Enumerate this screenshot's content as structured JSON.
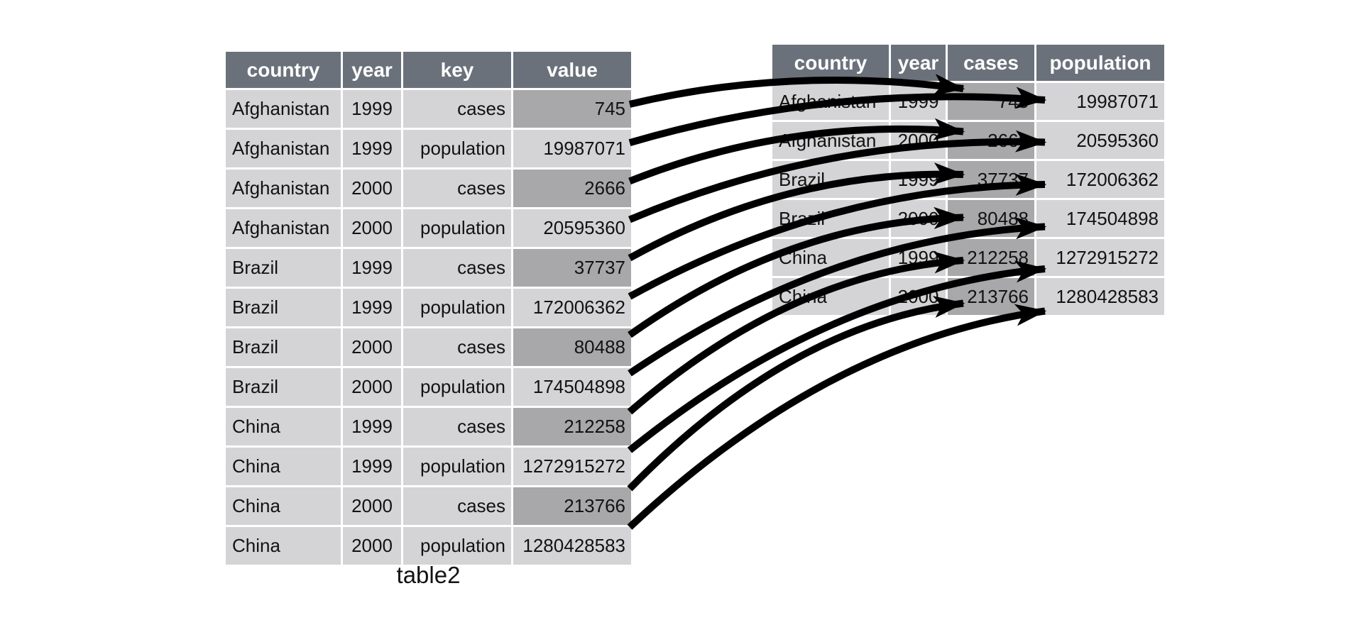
{
  "caption": "table2",
  "colors": {
    "header_bg": "#6b717b",
    "cell_bg": "#d4d4d6",
    "highlight_bg": "#a8a8aa",
    "text": "#121212",
    "header_text": "#ffffff",
    "arrow": "#000000",
    "page_bg": "#ffffff"
  },
  "left_table": {
    "title": "table2",
    "columns": [
      "country",
      "year",
      "key",
      "value"
    ],
    "rows": [
      {
        "country": "Afghanistan",
        "year": "1999",
        "key": "cases",
        "value": "745",
        "value_highlight": true
      },
      {
        "country": "Afghanistan",
        "year": "1999",
        "key": "population",
        "value": "19987071",
        "value_highlight": false
      },
      {
        "country": "Afghanistan",
        "year": "2000",
        "key": "cases",
        "value": "2666",
        "value_highlight": true
      },
      {
        "country": "Afghanistan",
        "year": "2000",
        "key": "population",
        "value": "20595360",
        "value_highlight": false
      },
      {
        "country": "Brazil",
        "year": "1999",
        "key": "cases",
        "value": "37737",
        "value_highlight": true
      },
      {
        "country": "Brazil",
        "year": "1999",
        "key": "population",
        "value": "172006362",
        "value_highlight": false
      },
      {
        "country": "Brazil",
        "year": "2000",
        "key": "cases",
        "value": "80488",
        "value_highlight": true
      },
      {
        "country": "Brazil",
        "year": "2000",
        "key": "population",
        "value": "174504898",
        "value_highlight": false
      },
      {
        "country": "China",
        "year": "1999",
        "key": "cases",
        "value": "212258",
        "value_highlight": true
      },
      {
        "country": "China",
        "year": "1999",
        "key": "population",
        "value": "1272915272",
        "value_highlight": false
      },
      {
        "country": "China",
        "year": "2000",
        "key": "cases",
        "value": "213766",
        "value_highlight": true
      },
      {
        "country": "China",
        "year": "2000",
        "key": "population",
        "value": "1280428583",
        "value_highlight": false
      }
    ]
  },
  "right_table": {
    "columns": [
      "country",
      "year",
      "cases",
      "population"
    ],
    "highlight_column": "cases",
    "rows": [
      {
        "country": "Afghanistan",
        "year": "1999",
        "cases": "745",
        "population": "19987071"
      },
      {
        "country": "Afghanistan",
        "year": "2000",
        "cases": "2666",
        "population": "20595360"
      },
      {
        "country": "Brazil",
        "year": "1999",
        "cases": "37737",
        "population": "172006362"
      },
      {
        "country": "Brazil",
        "year": "2000",
        "cases": "80488",
        "population": "174504898"
      },
      {
        "country": "China",
        "year": "1999",
        "cases": "212258",
        "population": "1272915272"
      },
      {
        "country": "China",
        "year": "2000",
        "cases": "213766",
        "population": "1280428583"
      }
    ]
  },
  "arrows": [
    {
      "from_left_row": 0,
      "to_right_row": 0,
      "to_column": "cases"
    },
    {
      "from_left_row": 1,
      "to_right_row": 0,
      "to_column": "population"
    },
    {
      "from_left_row": 2,
      "to_right_row": 1,
      "to_column": "cases"
    },
    {
      "from_left_row": 3,
      "to_right_row": 1,
      "to_column": "population"
    },
    {
      "from_left_row": 4,
      "to_right_row": 2,
      "to_column": "cases"
    },
    {
      "from_left_row": 5,
      "to_right_row": 2,
      "to_column": "population"
    },
    {
      "from_left_row": 6,
      "to_right_row": 3,
      "to_column": "cases"
    },
    {
      "from_left_row": 7,
      "to_right_row": 3,
      "to_column": "population"
    },
    {
      "from_left_row": 8,
      "to_right_row": 4,
      "to_column": "cases"
    },
    {
      "from_left_row": 9,
      "to_right_row": 4,
      "to_column": "population"
    },
    {
      "from_left_row": 10,
      "to_right_row": 5,
      "to_column": "cases"
    },
    {
      "from_left_row": 11,
      "to_right_row": 5,
      "to_column": "population"
    }
  ]
}
